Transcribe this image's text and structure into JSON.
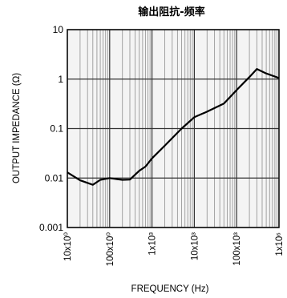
{
  "chart_data": {
    "type": "line",
    "title": "输出阻抗-频率",
    "xlabel": "FREQUENCY (Hz)",
    "ylabel": "OUTPUT IMPEDANCE (Ω)",
    "x_scale": "log",
    "y_scale": "log",
    "xlim": [
      10,
      1000000
    ],
    "ylim": [
      0.001,
      10
    ],
    "x_tick_values": [
      10,
      100,
      1000,
      10000,
      100000,
      1000000
    ],
    "x_tick_labels": [
      "10x10⁰",
      "100x10⁰",
      "1x10³",
      "10x10³",
      "100x10³",
      "1x10⁶"
    ],
    "y_tick_values": [
      0.001,
      0.01,
      0.1,
      1,
      10
    ],
    "y_tick_labels": [
      "0.001",
      "0.01",
      "0.1",
      "1",
      "10"
    ],
    "grid": true,
    "series": [
      {
        "color": "#000000",
        "x": [
          10,
          20,
          40,
          60,
          100,
          150,
          200,
          300,
          500,
          700,
          1000,
          2000,
          5000,
          10000,
          20000,
          50000,
          100000,
          200000,
          300000,
          500000,
          1000000
        ],
        "y": [
          0.013,
          0.009,
          0.0073,
          0.0092,
          0.01,
          0.0095,
          0.0092,
          0.0093,
          0.014,
          0.017,
          0.025,
          0.045,
          0.1,
          0.17,
          0.22,
          0.32,
          0.6,
          1.1,
          1.6,
          1.3,
          1.05
        ]
      }
    ]
  }
}
